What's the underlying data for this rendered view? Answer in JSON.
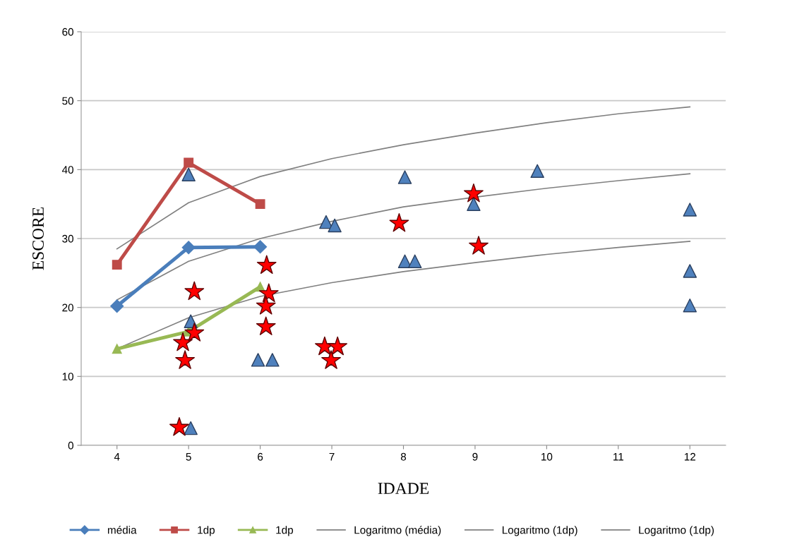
{
  "chart_data": {
    "type": "line",
    "xlabel": "IDADE",
    "ylabel": "ESCORE",
    "xlim": [
      3.5,
      12.5
    ],
    "ylim": [
      0,
      60
    ],
    "xticks": [
      4,
      5,
      6,
      7,
      8,
      9,
      10,
      11,
      12
    ],
    "yticks": [
      0,
      10,
      20,
      30,
      40,
      50,
      60
    ],
    "grid": "y",
    "legend": "bottom",
    "series": [
      {
        "name": "média",
        "color": "#4a7ebb",
        "marker": "diamond",
        "x": [
          4,
          5,
          6
        ],
        "values": [
          20.2,
          28.7,
          28.8
        ]
      },
      {
        "name": "1dp",
        "color": "#be4b48",
        "marker": "square",
        "x": [
          4,
          5,
          6
        ],
        "values": [
          26.2,
          41,
          35
        ]
      },
      {
        "name": "1dp",
        "color": "#98b954",
        "marker": "triangle",
        "x": [
          4,
          5,
          6
        ],
        "values": [
          14,
          16.5,
          23
        ]
      },
      {
        "name": "Logaritmo (média)",
        "color": "#808080",
        "marker": "none",
        "x": [
          4,
          5,
          6,
          7,
          8,
          9,
          10,
          11,
          12
        ],
        "values": [
          21.1,
          26.7,
          30.0,
          32.5,
          34.6,
          36.0,
          37.3,
          38.4,
          39.4
        ]
      },
      {
        "name": "Logaritmo (1dp)",
        "color": "#808080",
        "marker": "none",
        "x": [
          4,
          5,
          6,
          7,
          8,
          9,
          10,
          11,
          12
        ],
        "values": [
          28.5,
          35.2,
          39.0,
          41.6,
          43.6,
          45.3,
          46.8,
          48.1,
          49.1
        ]
      },
      {
        "name": "Logaritmo (1dp)",
        "color": "#808080",
        "marker": "none",
        "x": [
          4,
          5,
          6,
          7,
          8,
          9,
          10,
          11,
          12
        ],
        "values": [
          14.0,
          18.5,
          21.6,
          23.6,
          25.2,
          26.5,
          27.7,
          28.7,
          29.6
        ]
      },
      {
        "type": "scatter",
        "color": "#4f81bd",
        "marker": "triangle",
        "x": [
          5.0,
          5.03,
          5.97,
          6.17,
          5.03,
          6.92,
          7.04,
          8.02,
          8.02,
          8.16,
          8.98,
          9.87,
          12,
          12,
          12
        ],
        "values": [
          39.3,
          18.0,
          12.4,
          12.4,
          2.5,
          32.4,
          31.9,
          38.9,
          26.7,
          26.7,
          35.0,
          39.8,
          34.2,
          25.3,
          20.3
        ]
      },
      {
        "type": "scatter",
        "color": "#ff0000",
        "marker": "star",
        "x": [
          5.08,
          4.92,
          5.08,
          4.95,
          4.87,
          6.09,
          6.12,
          6.08,
          6.08,
          6.9,
          7.08,
          6.99,
          7.94,
          8.98,
          9.05
        ],
        "values": [
          22.3,
          14.9,
          16.3,
          12.3,
          2.6,
          26.1,
          22.0,
          20.2,
          17.2,
          14.3,
          14.3,
          12.3,
          32.2,
          36.5,
          28.9
        ]
      }
    ]
  }
}
